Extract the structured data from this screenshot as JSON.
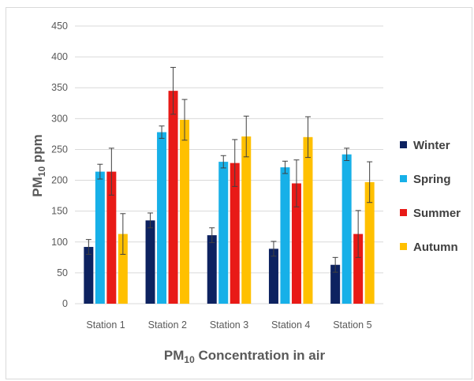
{
  "chart_data": {
    "type": "bar",
    "xlabel": {
      "main": "PM",
      "sub": "10",
      "rest": " Concentration in air"
    },
    "ylabel": {
      "main": "PM",
      "sub": "10",
      "rest": " ppm"
    },
    "categories": [
      "Station 1",
      "Station 2",
      "Station 3",
      "Station 4",
      "Station 5"
    ],
    "ylim": [
      0,
      450
    ],
    "yticks": [
      0,
      50,
      100,
      150,
      200,
      250,
      300,
      350,
      400,
      450
    ],
    "grid": true,
    "legend_position": "right",
    "series": [
      {
        "name": "Winter",
        "color": "#0d2260",
        "values": [
          92,
          135,
          111,
          89,
          63
        ],
        "errors": [
          12,
          12,
          12,
          12,
          12
        ]
      },
      {
        "name": "Spring",
        "color": "#17b0e8",
        "values": [
          214,
          278,
          230,
          221,
          242
        ],
        "errors": [
          12,
          10,
          10,
          10,
          10
        ]
      },
      {
        "name": "Summer",
        "color": "#e81a17",
        "values": [
          214,
          345,
          228,
          195,
          113
        ],
        "errors": [
          38,
          38,
          38,
          38,
          38
        ]
      },
      {
        "name": "Autumn",
        "color": "#ffc000",
        "values": [
          113,
          298,
          271,
          270,
          197
        ],
        "errors": [
          33,
          33,
          33,
          33,
          33
        ]
      }
    ]
  }
}
